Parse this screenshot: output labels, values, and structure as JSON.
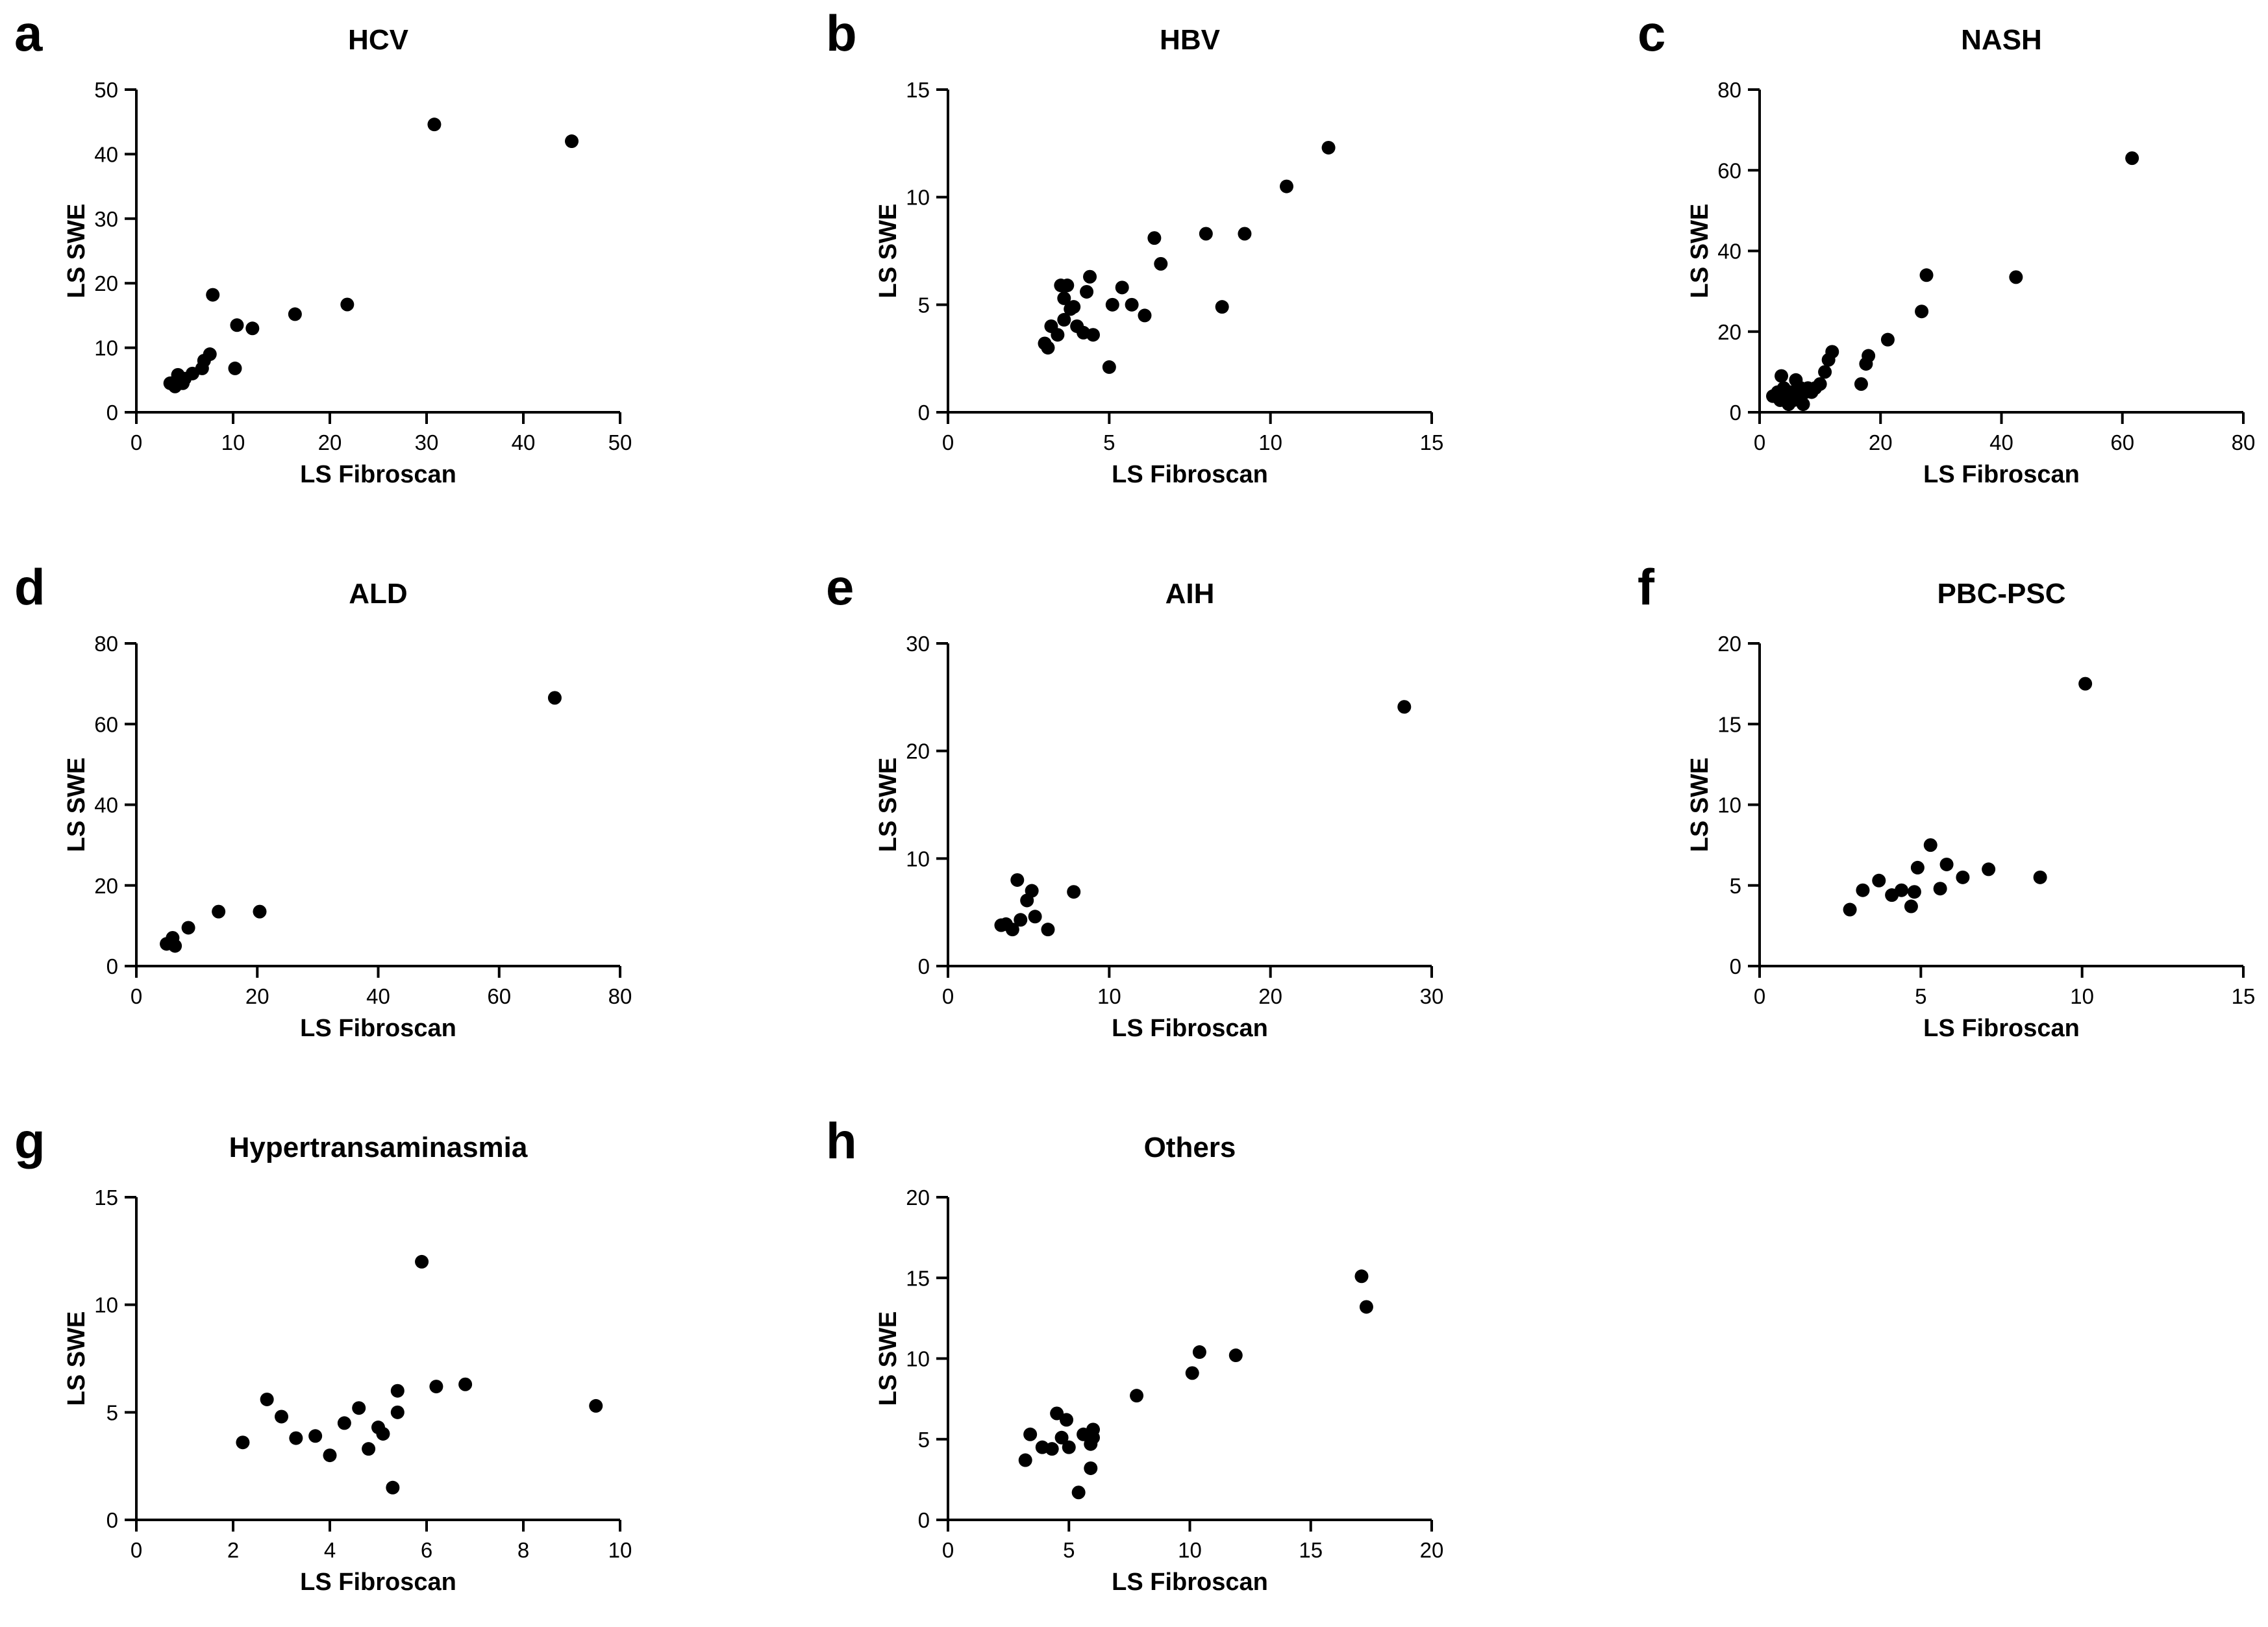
{
  "chart_data": [
    {
      "panel": "a",
      "title": "HCV",
      "type": "scatter",
      "xlabel": "LS Fibroscan",
      "ylabel": "LS SWE",
      "xlim": [
        0,
        50
      ],
      "ylim": [
        0,
        50
      ],
      "xticks": [
        "0",
        "10",
        "20",
        "30",
        "40",
        "50"
      ],
      "yticks": [
        "0",
        "10",
        "20",
        "30",
        "40",
        "50"
      ],
      "x": [
        3.5,
        4.0,
        4.3,
        4.8,
        5.0,
        4.2,
        5.8,
        6.8,
        7.0,
        7.6,
        7.9,
        10.2,
        10.4,
        12,
        16.4,
        21.8,
        30.8,
        45
      ],
      "y": [
        4.5,
        4.0,
        5.8,
        4.5,
        5.2,
        5.0,
        6.0,
        6.8,
        8.0,
        9.0,
        18.2,
        6.8,
        13.5,
        13.0,
        15.2,
        16.7,
        44.6,
        42
      ]
    },
    {
      "panel": "b",
      "title": "HBV",
      "type": "scatter",
      "xlabel": "LS Fibroscan",
      "ylabel": "LS SWE",
      "xlim": [
        0,
        15
      ],
      "ylim": [
        0,
        15
      ],
      "xticks": [
        "0",
        "5",
        "10",
        "15"
      ],
      "yticks": [
        "0",
        "5",
        "10",
        "15"
      ],
      "x": [
        3.0,
        3.1,
        3.2,
        3.4,
        3.5,
        3.6,
        3.6,
        3.7,
        3.8,
        3.9,
        4.0,
        4.2,
        4.3,
        4.4,
        4.5,
        5.0,
        5.1,
        5.4,
        5.7,
        6.1,
        6.4,
        6.6,
        8.0,
        8.5,
        9.2,
        10.5,
        11.8
      ],
      "y": [
        3.2,
        3.0,
        4.0,
        3.6,
        5.9,
        4.3,
        5.3,
        5.9,
        4.8,
        4.9,
        4.0,
        3.7,
        5.6,
        6.3,
        3.6,
        2.1,
        5.0,
        5.8,
        5.0,
        4.5,
        8.1,
        6.9,
        8.3,
        4.9,
        8.3,
        10.5,
        12.3
      ]
    },
    {
      "panel": "c",
      "title": "NASH",
      "type": "scatter",
      "xlabel": "LS Fibroscan",
      "ylabel": "LS SWE",
      "xlim": [
        0,
        80
      ],
      "ylim": [
        0,
        80
      ],
      "xticks": [
        "0",
        "20",
        "40",
        "60",
        "80"
      ],
      "yticks": [
        "0",
        "20",
        "40",
        "60",
        "80"
      ],
      "x": [
        2.2,
        3.0,
        3.4,
        3.6,
        4.0,
        4.4,
        4.8,
        5.2,
        5.6,
        6.0,
        6.3,
        6.8,
        7.2,
        7.6,
        8.0,
        8.6,
        9.2,
        10.0,
        10.8,
        11.4,
        12.0,
        16.8,
        17.6,
        18.0,
        21.2,
        26.8,
        27.6,
        42.4,
        61.6
      ],
      "y": [
        4.0,
        5.0,
        3.0,
        9.0,
        6.0,
        4.0,
        2.0,
        5.0,
        3.0,
        8.0,
        4.0,
        6.0,
        2.0,
        5.0,
        6.0,
        5.0,
        6.0,
        7.0,
        10.0,
        13.0,
        15.0,
        7.0,
        12.0,
        14.0,
        18.0,
        25.0,
        34.0,
        33.5,
        63.0
      ]
    },
    {
      "panel": "d",
      "title": "ALD",
      "type": "scatter",
      "xlabel": "LS Fibroscan",
      "ylabel": "LS SWE",
      "xlim": [
        0,
        80
      ],
      "ylim": [
        0,
        80
      ],
      "xticks": [
        "0",
        "20",
        "40",
        "60",
        "80"
      ],
      "yticks": [
        "0",
        "20",
        "40",
        "60",
        "80"
      ],
      "x": [
        5.0,
        6.0,
        6.4,
        8.6,
        13.6,
        20.4,
        69.2
      ],
      "y": [
        5.5,
        7.0,
        5.0,
        9.5,
        13.5,
        13.5,
        66.5
      ]
    },
    {
      "panel": "e",
      "title": "AIH",
      "type": "scatter",
      "xlabel": "LS Fibroscan",
      "ylabel": "LS SWE",
      "xlim": [
        0,
        30
      ],
      "ylim": [
        0,
        30
      ],
      "xticks": [
        "0",
        "10",
        "20",
        "30"
      ],
      "yticks": [
        "0",
        "10",
        "20",
        "30"
      ],
      "x": [
        3.3,
        3.6,
        4.0,
        4.3,
        4.5,
        4.9,
        5.2,
        5.4,
        6.2,
        7.8,
        28.3
      ],
      "y": [
        3.8,
        3.9,
        3.4,
        8.0,
        4.3,
        6.1,
        7.0,
        4.6,
        3.4,
        6.9,
        24.1
      ]
    },
    {
      "panel": "f",
      "title": "PBC-PSC",
      "type": "scatter",
      "xlabel": "LS Fibroscan",
      "ylabel": "LS SWE",
      "xlim": [
        0,
        15
      ],
      "ylim": [
        0,
        20
      ],
      "xticks": [
        "0",
        "5",
        "10",
        "15"
      ],
      "yticks": [
        "0",
        "5",
        "10",
        "15",
        "20"
      ],
      "x": [
        2.8,
        3.2,
        3.7,
        4.1,
        4.4,
        4.7,
        4.8,
        4.9,
        5.3,
        5.6,
        5.8,
        6.3,
        7.1,
        8.7,
        10.1
      ],
      "y": [
        3.5,
        4.7,
        5.3,
        4.4,
        4.7,
        3.7,
        4.6,
        6.1,
        7.5,
        4.8,
        6.3,
        5.5,
        6.0,
        5.5,
        17.5
      ]
    },
    {
      "panel": "g",
      "title": "Hypertransaminasmia",
      "type": "scatter",
      "xlabel": "LS Fibroscan",
      "ylabel": "LS SWE",
      "xlim": [
        0,
        10
      ],
      "ylim": [
        0,
        15
      ],
      "xticks": [
        "0",
        "2",
        "4",
        "6",
        "8",
        "10"
      ],
      "yticks": [
        "0",
        "5",
        "10",
        "15"
      ],
      "x": [
        2.2,
        2.7,
        3.0,
        3.3,
        3.7,
        4.0,
        4.3,
        4.6,
        4.8,
        5.0,
        5.1,
        5.3,
        5.4,
        5.4,
        5.9,
        6.2,
        6.8,
        9.5
      ],
      "y": [
        3.6,
        5.6,
        4.8,
        3.8,
        3.9,
        3.0,
        4.5,
        5.2,
        3.3,
        4.3,
        4.0,
        1.5,
        6.0,
        5.0,
        12.0,
        6.2,
        6.3,
        5.3
      ]
    },
    {
      "panel": "h",
      "title": "Others",
      "type": "scatter",
      "xlabel": "LS Fibroscan",
      "ylabel": "LS SWE",
      "xlim": [
        0,
        20
      ],
      "ylim": [
        0,
        20
      ],
      "xticks": [
        "0",
        "5",
        "10",
        "15",
        "20"
      ],
      "yticks": [
        "0",
        "5",
        "10",
        "15",
        "20"
      ],
      "x": [
        3.2,
        3.4,
        3.9,
        4.3,
        4.5,
        4.7,
        4.9,
        5.0,
        5.4,
        5.6,
        5.9,
        5.9,
        6.0,
        6.0,
        7.8,
        10.1,
        10.4,
        11.9,
        17.1,
        17.3
      ],
      "y": [
        3.7,
        5.3,
        4.5,
        4.4,
        6.6,
        5.1,
        6.2,
        4.5,
        1.7,
        5.3,
        4.7,
        3.2,
        5.6,
        5.1,
        7.7,
        9.1,
        10.4,
        10.2,
        15.1,
        13.2
      ]
    }
  ]
}
